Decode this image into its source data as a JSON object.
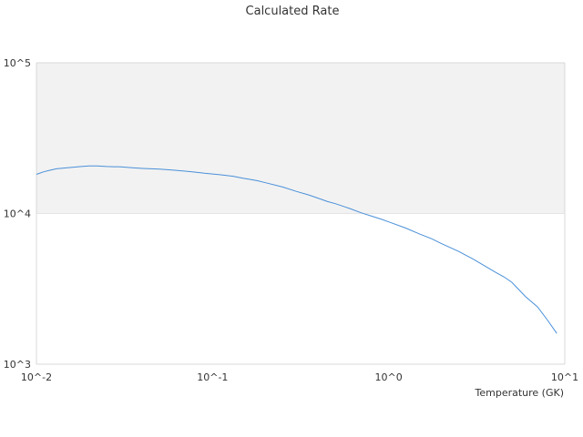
{
  "chart_data": {
    "type": "line",
    "title": "Calculated Rate",
    "xlabel": "Temperature (GK)",
    "ylabel": "",
    "x_scale": "log",
    "y_scale": "log",
    "xlim": [
      0.01,
      10
    ],
    "ylim": [
      1000,
      100000
    ],
    "x_tick_values": [
      0.01,
      0.1,
      1,
      10
    ],
    "x_tick_labels": [
      "10^-2",
      "10^-1",
      "10^0",
      "10^1"
    ],
    "y_tick_values": [
      1000,
      10000,
      100000
    ],
    "y_tick_labels": [
      "10^3",
      "10^4",
      "10^5"
    ],
    "grid": false,
    "band": {
      "from": 10000,
      "to": 100000,
      "color": "#f2f2f2"
    },
    "series": [
      {
        "color": "#4a90d9",
        "x": [
          0.01,
          0.011,
          0.012,
          0.013,
          0.015,
          0.018,
          0.02,
          0.022,
          0.025,
          0.03,
          0.035,
          0.04,
          0.045,
          0.05,
          0.06,
          0.07,
          0.08,
          0.09,
          0.1,
          0.11,
          0.12,
          0.13,
          0.14,
          0.15,
          0.16,
          0.18,
          0.2,
          0.25,
          0.3,
          0.35,
          0.4,
          0.45,
          0.5,
          0.6,
          0.7,
          0.8,
          0.9,
          1.0,
          1.25,
          1.5,
          1.75,
          2.0,
          2.5,
          3.0,
          3.5,
          4.0,
          4.5,
          5.0,
          6.0,
          7.0,
          8.0,
          9.0
        ],
        "values": [
          18200,
          18900,
          19400,
          19800,
          20100,
          20500,
          20700,
          20700,
          20500,
          20400,
          20100,
          19900,
          19800,
          19700,
          19400,
          19100,
          18800,
          18500,
          18300,
          18100,
          17900,
          17700,
          17400,
          17100,
          16900,
          16500,
          16000,
          15000,
          14000,
          13300,
          12600,
          12000,
          11600,
          10800,
          10100,
          9600,
          9200,
          8800,
          8000,
          7300,
          6800,
          6300,
          5600,
          5000,
          4500,
          4100,
          3800,
          3500,
          2800,
          2400,
          1950,
          1600
        ]
      }
    ]
  }
}
